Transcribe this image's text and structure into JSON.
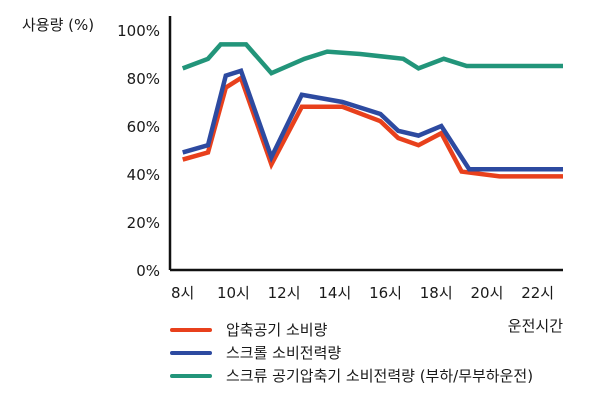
{
  "chart_data": {
    "type": "line",
    "ylabel": "사용량 (%)",
    "xlabel": "운전시간",
    "ylim": [
      0,
      100
    ],
    "yticks": [
      "0%",
      "20%",
      "40%",
      "60%",
      "80%",
      "100%"
    ],
    "xlim": [
      7.5,
      23
    ],
    "xticks": [
      {
        "value": 8,
        "label": "8시"
      },
      {
        "value": 10,
        "label": "10시"
      },
      {
        "value": 12,
        "label": "12시"
      },
      {
        "value": 14,
        "label": "14시"
      },
      {
        "value": 16,
        "label": "16시"
      },
      {
        "value": 18,
        "label": "18시"
      },
      {
        "value": 20,
        "label": "20시"
      },
      {
        "value": 22,
        "label": "22시"
      }
    ],
    "series": [
      {
        "name": "압축공기 소비량",
        "color": "#e8401c",
        "points": [
          [
            8,
            46
          ],
          [
            9,
            49
          ],
          [
            9.7,
            76
          ],
          [
            10.3,
            80
          ],
          [
            11.5,
            44
          ],
          [
            12.7,
            68
          ],
          [
            14.3,
            68
          ],
          [
            15.8,
            62
          ],
          [
            16.5,
            55
          ],
          [
            17.3,
            52
          ],
          [
            18.2,
            57
          ],
          [
            19,
            41
          ],
          [
            20.5,
            39
          ],
          [
            23,
            39
          ]
        ]
      },
      {
        "name": "스크롤 소비전력량",
        "color": "#2d4aa0",
        "points": [
          [
            8,
            49
          ],
          [
            9,
            52
          ],
          [
            9.7,
            81
          ],
          [
            10.3,
            83
          ],
          [
            11.5,
            47
          ],
          [
            12.7,
            73
          ],
          [
            14.3,
            70
          ],
          [
            15.8,
            65
          ],
          [
            16.5,
            58
          ],
          [
            17.3,
            56
          ],
          [
            18.2,
            60
          ],
          [
            19.3,
            42
          ],
          [
            20.5,
            42
          ],
          [
            23,
            42
          ]
        ]
      },
      {
        "name": "스크류 공기압축기 소비전력량 (부하/무부하운전)",
        "color": "#22957a",
        "points": [
          [
            8,
            84
          ],
          [
            9,
            88
          ],
          [
            9.5,
            94
          ],
          [
            10.5,
            94
          ],
          [
            11.5,
            82
          ],
          [
            12.8,
            88
          ],
          [
            13.7,
            91
          ],
          [
            15,
            90
          ],
          [
            16.7,
            88
          ],
          [
            17.3,
            84
          ],
          [
            18.3,
            88
          ],
          [
            19.2,
            85
          ],
          [
            20.5,
            85
          ],
          [
            23,
            85
          ]
        ]
      }
    ]
  }
}
